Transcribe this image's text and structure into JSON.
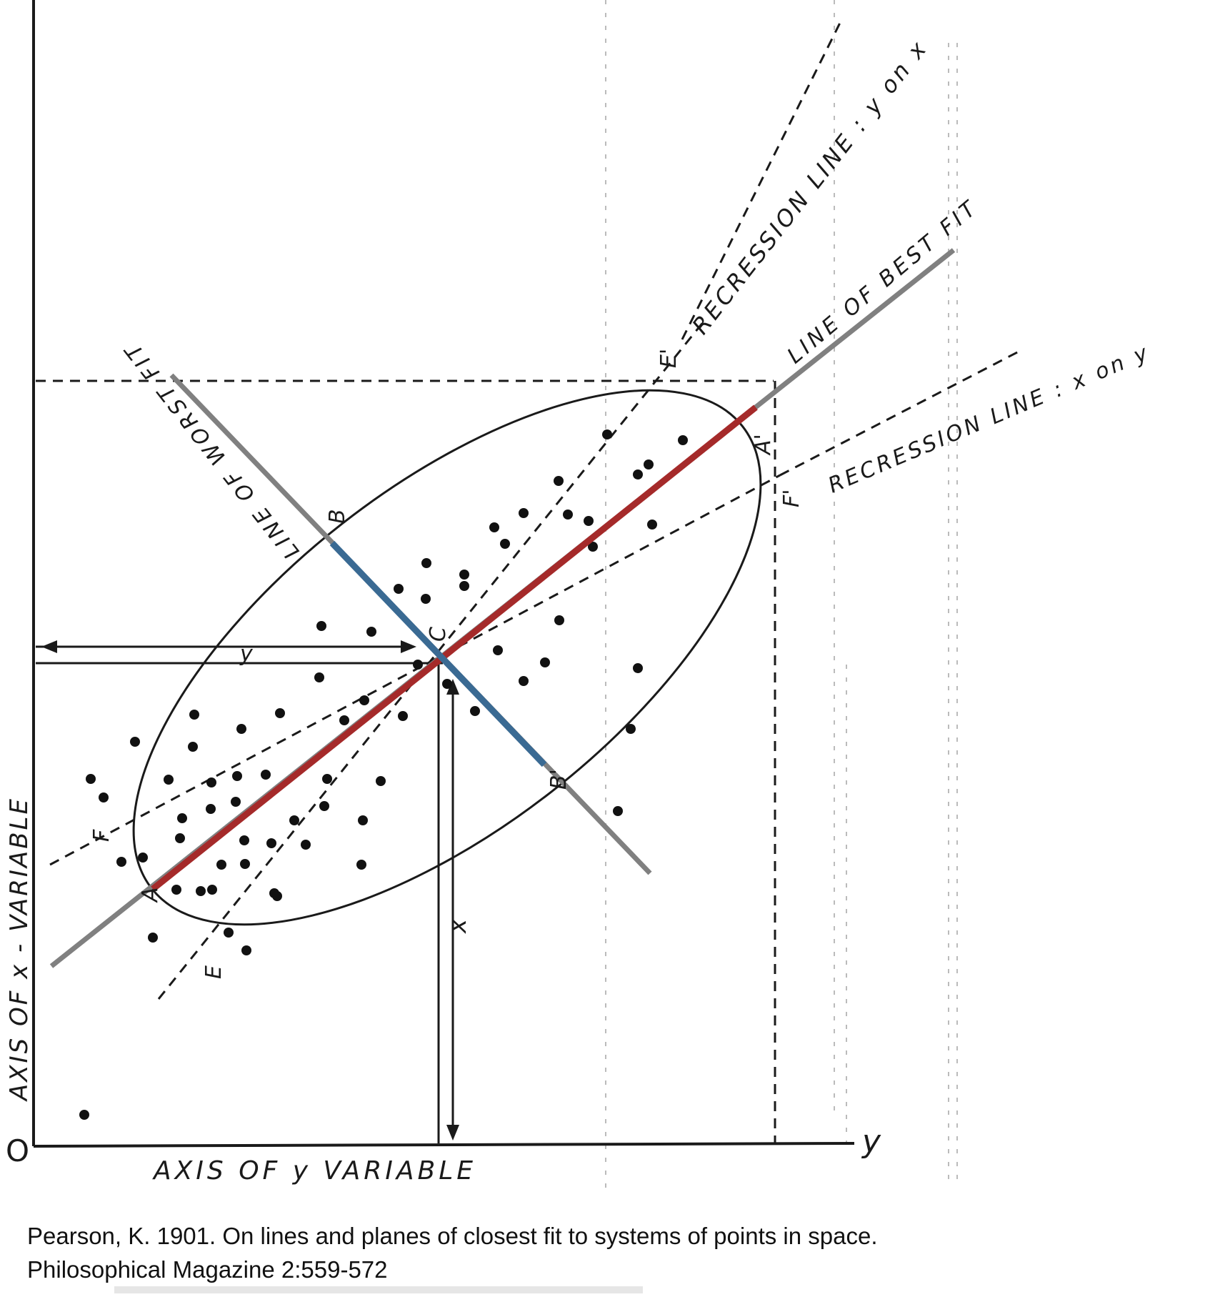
{
  "figure": {
    "labels": {
      "origin": "O",
      "y_axis_end": "y",
      "axis_y": "AXIS OF y VARIABLE",
      "axis_x": "AXIS OF x - VARIABLE",
      "line_worst": "LINE OF WORST FIT",
      "line_best": "LINE OF BEST FIT",
      "reg_y_on_x": "RECRESSION LINE : y on x",
      "reg_x_on_y": "RECRESSION LINE : x on y",
      "point_a": "A",
      "point_a_prime": "A'",
      "point_b": "B",
      "point_b_prime": "B'",
      "point_c": "C",
      "point_e": "E",
      "point_e_prime": "E'",
      "point_f": "F",
      "point_f_prime": "F'",
      "mark_x": "x",
      "mark_y": "y"
    },
    "colors": {
      "best_fit_segment": "#a52a2a",
      "worst_fit_segment": "#3a6a93",
      "overlay_line": "#808080",
      "ink": "#1a1a1a"
    }
  },
  "caption": {
    "line1": "Pearson, K. 1901. On lines and planes of closest fit to systems of points in space.",
    "line2": "Philosophical Magazine 2:559-572"
  }
}
